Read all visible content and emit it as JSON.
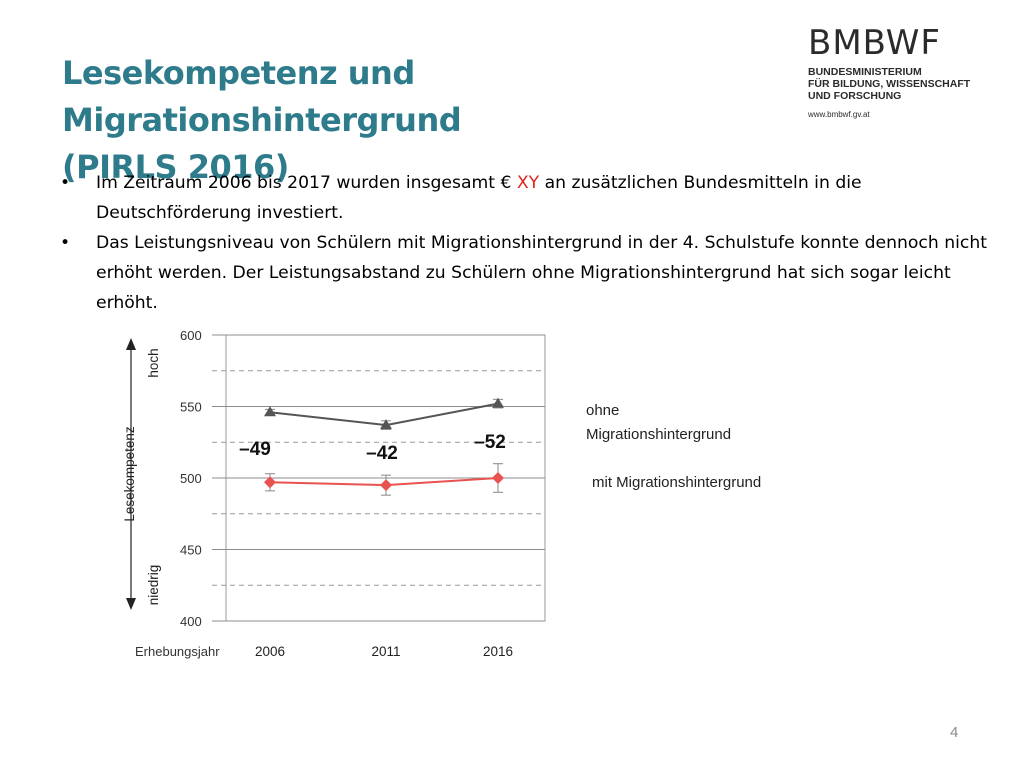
{
  "slide": {
    "title_line1": "Lesekompetenz und Migrationshintergrund",
    "title_line2": "(PIRLS 2016)",
    "logo": {
      "name": "BMBWF",
      "subtitle_lines": [
        "BUNDESMINISTERIUM",
        "FÜR BILDUNG, WISSENSCHAFT",
        "UND FORSCHUNG"
      ],
      "url": "www.bmbwf.gv.at"
    },
    "bullets": [
      {
        "pre": "Im Zeitraum 2006 bis 2017 wurden insgesamt € ",
        "highlight": "XY",
        "post": " an zusätzlichen Bundesmitteln in die Deutschförderung investiert."
      },
      {
        "pre": "Das Leistungsniveau von Schülern mit Migrationshintergrund in der 4. Schulstufe konnte dennoch nicht erhöht werden. Der Leistungsabstand zu Schülern ohne Migrationshintergrund hat sich sogar leicht erhöht.",
        "highlight": "",
        "post": ""
      }
    ],
    "page_number": "4"
  },
  "colors": {
    "title": "#2e7b8c",
    "highlight": "#e2231a",
    "series_ohne": "#555555",
    "series_mit": "#e8534f"
  },
  "chart_data": {
    "type": "line",
    "ylabel": "Lesekompetenz",
    "ylabel_high": "hoch",
    "ylabel_low": "niedrig",
    "xlabel": "Erhebungsjahr",
    "x": [
      "2006",
      "2011",
      "2016"
    ],
    "ylim": [
      400,
      600
    ],
    "yticks": [
      400,
      450,
      500,
      550,
      600
    ],
    "dashed_gridlines": [
      425,
      475,
      525,
      575
    ],
    "series": [
      {
        "name": "ohne Migrationshintergrund",
        "values": [
          546,
          537,
          552
        ],
        "marker": "triangle",
        "error": [
          2,
          3,
          3
        ]
      },
      {
        "name": "mit Migrationshintergrund",
        "values": [
          497,
          495,
          500
        ],
        "marker": "diamond",
        "error": [
          6,
          7,
          10
        ]
      }
    ],
    "differences": [
      "–49",
      "–42",
      "–52"
    ],
    "legend_position": "right"
  }
}
